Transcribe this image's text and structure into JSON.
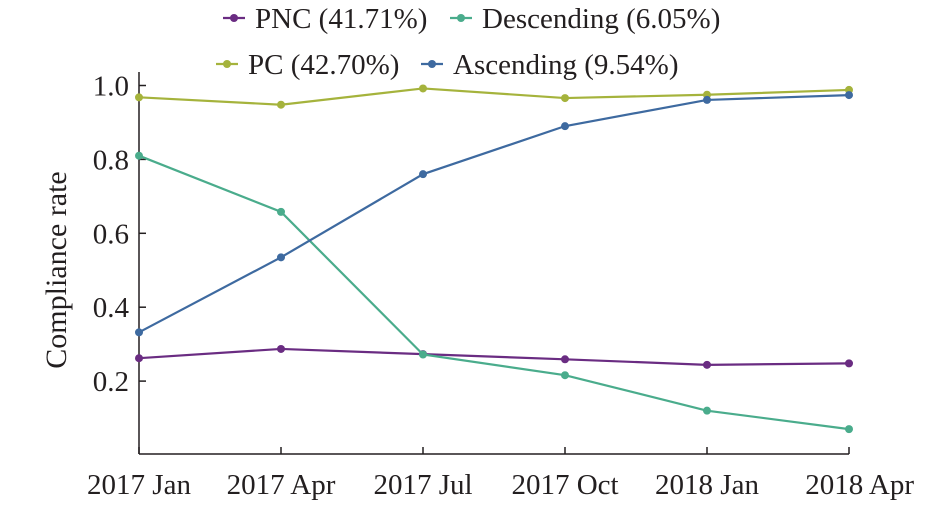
{
  "chart_data": {
    "type": "line",
    "categories": [
      "2017 Jan",
      "2017 Apr",
      "2017 Jul",
      "2017 Oct",
      "2018 Jan",
      "2018 Apr"
    ],
    "ylabel": "Compliance rate",
    "xlabel": "",
    "ylim": [
      0.0,
      1.0
    ],
    "yticks": [
      0.2,
      0.4,
      0.6,
      0.8,
      1.0
    ],
    "ytick_labels": [
      "0.2",
      "0.4",
      "0.6",
      "0.8",
      "1.0"
    ],
    "legend_position": "top",
    "grid": false,
    "series": [
      {
        "name": "PNC (41.71%)",
        "color": "#6a2c82",
        "values": [
          0.262,
          0.287,
          0.273,
          0.259,
          0.244,
          0.248
        ]
      },
      {
        "name": "Descending (6.05%)",
        "color": "#4aac8c",
        "values": [
          0.81,
          0.658,
          0.272,
          0.216,
          0.12,
          0.07
        ]
      },
      {
        "name": "PC (42.70%)",
        "color": "#a5b33c",
        "values": [
          0.968,
          0.948,
          0.992,
          0.966,
          0.975,
          0.988
        ]
      },
      {
        "name": "Ascending (9.54%)",
        "color": "#3e6aa0",
        "values": [
          0.332,
          0.535,
          0.76,
          0.89,
          0.961,
          0.974
        ]
      }
    ]
  }
}
